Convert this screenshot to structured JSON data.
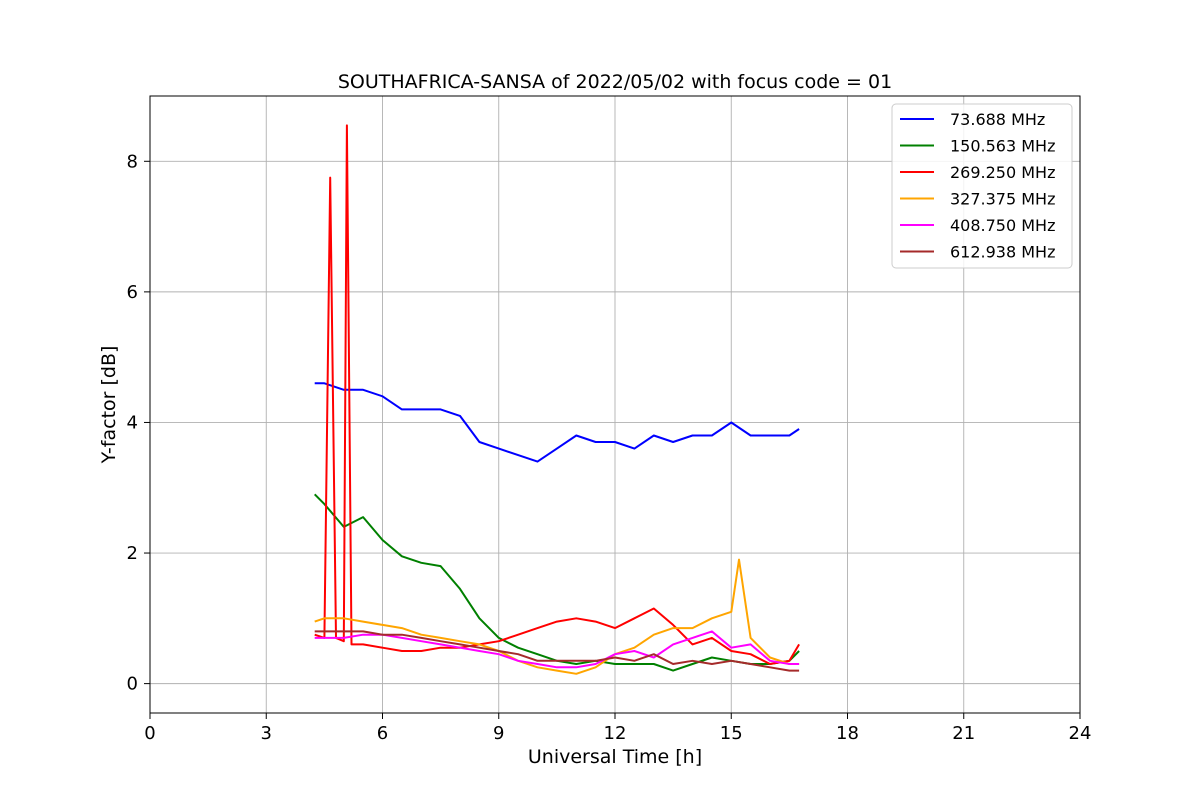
{
  "chart_data": {
    "type": "line",
    "title": "SOUTHAFRICA-SANSA of 2022/05/02 with focus code = 01",
    "xlabel": "Universal Time [h]",
    "ylabel": "Y-factor [dB]",
    "xlim": [
      0,
      24
    ],
    "ylim": [
      -0.45,
      9.0
    ],
    "xticks": [
      0,
      3,
      6,
      9,
      12,
      15,
      18,
      21,
      24
    ],
    "yticks": [
      0,
      2,
      4,
      6,
      8
    ],
    "grid": true,
    "legend_position": "top-right",
    "series": [
      {
        "name": "73.688 MHz",
        "color": "#0000ff",
        "x": [
          4.25,
          4.5,
          5.0,
          5.5,
          6.0,
          6.5,
          7.0,
          7.5,
          8.0,
          8.5,
          9.0,
          9.5,
          10.0,
          10.5,
          11.0,
          11.5,
          12.0,
          12.5,
          13.0,
          13.5,
          14.0,
          14.5,
          15.0,
          15.5,
          16.0,
          16.5,
          16.75
        ],
        "y": [
          4.6,
          4.6,
          4.5,
          4.5,
          4.4,
          4.2,
          4.2,
          4.2,
          4.1,
          3.7,
          3.6,
          3.5,
          3.4,
          3.6,
          3.8,
          3.7,
          3.7,
          3.6,
          3.8,
          3.7,
          3.8,
          3.8,
          4.0,
          3.8,
          3.8,
          3.8,
          3.9
        ]
      },
      {
        "name": "150.563 MHz",
        "color": "#008000",
        "x": [
          4.25,
          4.5,
          5.0,
          5.5,
          6.0,
          6.5,
          7.0,
          7.5,
          8.0,
          8.5,
          9.0,
          9.5,
          10.0,
          10.5,
          11.0,
          11.5,
          12.0,
          12.5,
          13.0,
          13.5,
          14.0,
          14.5,
          15.0,
          15.5,
          16.0,
          16.5,
          16.75
        ],
        "y": [
          2.9,
          2.75,
          2.4,
          2.55,
          2.2,
          1.95,
          1.85,
          1.8,
          1.45,
          1.0,
          0.7,
          0.55,
          0.45,
          0.35,
          0.3,
          0.35,
          0.3,
          0.3,
          0.3,
          0.2,
          0.3,
          0.4,
          0.35,
          0.3,
          0.3,
          0.35,
          0.5
        ]
      },
      {
        "name": "269.250 MHz",
        "color": "#ff0000",
        "x": [
          4.25,
          4.5,
          4.65,
          4.8,
          5.0,
          5.08,
          5.2,
          5.5,
          6.0,
          6.5,
          7.0,
          7.5,
          8.0,
          8.5,
          9.0,
          9.5,
          10.0,
          10.5,
          11.0,
          11.5,
          12.0,
          12.5,
          13.0,
          13.5,
          14.0,
          14.5,
          15.0,
          15.5,
          16.0,
          16.5,
          16.75
        ],
        "y": [
          0.75,
          0.7,
          7.75,
          0.7,
          0.65,
          8.55,
          0.6,
          0.6,
          0.55,
          0.5,
          0.5,
          0.55,
          0.55,
          0.6,
          0.65,
          0.75,
          0.85,
          0.95,
          1.0,
          0.95,
          0.85,
          1.0,
          1.15,
          0.9,
          0.6,
          0.7,
          0.5,
          0.45,
          0.3,
          0.35,
          0.6
        ]
      },
      {
        "name": "327.375 MHz",
        "color": "#ffa500",
        "x": [
          4.25,
          4.5,
          5.0,
          5.5,
          6.0,
          6.5,
          7.0,
          7.5,
          8.0,
          8.5,
          9.0,
          9.5,
          10.0,
          10.5,
          11.0,
          11.5,
          12.0,
          12.5,
          13.0,
          13.5,
          14.0,
          14.5,
          15.0,
          15.2,
          15.5,
          16.0,
          16.5,
          16.75
        ],
        "y": [
          0.95,
          1.0,
          1.0,
          0.95,
          0.9,
          0.85,
          0.75,
          0.7,
          0.65,
          0.6,
          0.5,
          0.35,
          0.25,
          0.2,
          0.15,
          0.25,
          0.45,
          0.55,
          0.75,
          0.85,
          0.85,
          1.0,
          1.1,
          1.9,
          0.7,
          0.4,
          0.3,
          0.3
        ]
      },
      {
        "name": "408.750 MHz",
        "color": "#ff00ff",
        "x": [
          4.25,
          4.5,
          5.0,
          5.5,
          6.0,
          6.5,
          7.0,
          7.5,
          8.0,
          8.5,
          9.0,
          9.5,
          10.0,
          10.5,
          11.0,
          11.5,
          12.0,
          12.5,
          13.0,
          13.5,
          14.0,
          14.5,
          15.0,
          15.5,
          16.0,
          16.5,
          16.75
        ],
        "y": [
          0.7,
          0.7,
          0.7,
          0.75,
          0.75,
          0.7,
          0.65,
          0.6,
          0.55,
          0.5,
          0.45,
          0.35,
          0.3,
          0.25,
          0.25,
          0.3,
          0.45,
          0.5,
          0.4,
          0.6,
          0.7,
          0.8,
          0.55,
          0.6,
          0.35,
          0.3,
          0.3
        ]
      },
      {
        "name": "612.938 MHz",
        "color": "#a52a2a",
        "x": [
          4.25,
          4.5,
          5.0,
          5.5,
          6.0,
          6.5,
          7.0,
          7.5,
          8.0,
          8.5,
          9.0,
          9.5,
          10.0,
          10.5,
          11.0,
          11.5,
          12.0,
          12.5,
          13.0,
          13.5,
          14.0,
          14.5,
          15.0,
          15.5,
          16.0,
          16.5,
          16.75
        ],
        "y": [
          0.8,
          0.8,
          0.8,
          0.8,
          0.75,
          0.75,
          0.7,
          0.65,
          0.6,
          0.55,
          0.5,
          0.45,
          0.35,
          0.35,
          0.35,
          0.35,
          0.4,
          0.35,
          0.45,
          0.3,
          0.35,
          0.3,
          0.35,
          0.3,
          0.25,
          0.2,
          0.2
        ]
      }
    ]
  }
}
